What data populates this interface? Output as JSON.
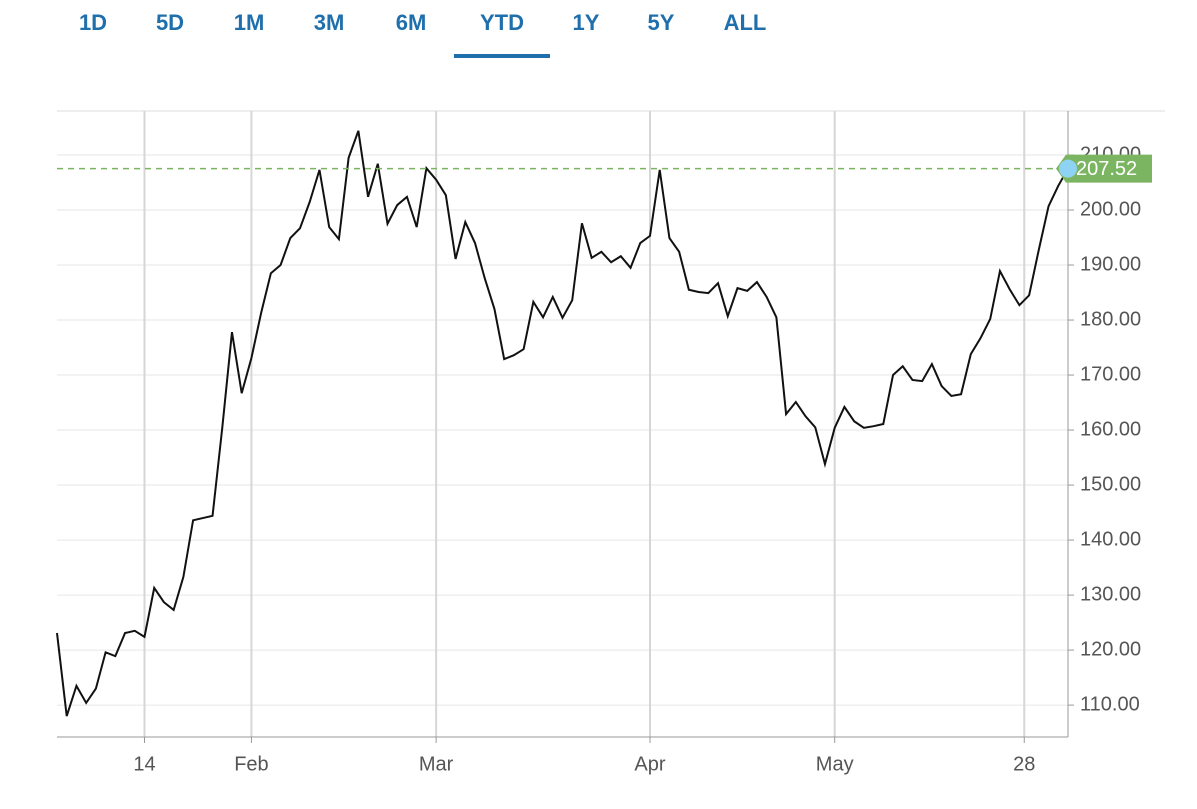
{
  "tabs": [
    "1D",
    "5D",
    "1M",
    "3M",
    "6M",
    "YTD",
    "1Y",
    "5Y",
    "ALL"
  ],
  "selected_tab": 5,
  "chart_data": {
    "type": "line",
    "color": "#111111",
    "grid": true,
    "y_axis_side": "right",
    "values": [
      123.1,
      108,
      113.5,
      110.4,
      113,
      119.6,
      118.9,
      123.1,
      123.5,
      122.4,
      131.3,
      128.7,
      127.3,
      133.3,
      143.6,
      144,
      144.4,
      160.4,
      177.8,
      166.7,
      173.1,
      181.3,
      188.5,
      190,
      194.9,
      196.7,
      201.5,
      207.3,
      196.9,
      194.7,
      209.5,
      214.4,
      202.4,
      208.4,
      197.5,
      200.9,
      202.4,
      196.9,
      207.6,
      205.5,
      202.7,
      191.1,
      197.8,
      194,
      187.6,
      182,
      172.9,
      173.6,
      174.7,
      183.3,
      180.5,
      184.2,
      180.4,
      183.6,
      197.6,
      191.3,
      192.4,
      190.5,
      191.6,
      189.5,
      194,
      195.3,
      207.3,
      194.9,
      192.4,
      185.5,
      185.1,
      184.9,
      186.7,
      180.7,
      185.8,
      185.3,
      186.9,
      184.2,
      180.5,
      162.9,
      165.1,
      162.5,
      160.5,
      153.8,
      160.4,
      164.2,
      161.6,
      160.4,
      160.7,
      161.1,
      170,
      171.6,
      169.1,
      168.9,
      172,
      168,
      166.2,
      166.5,
      173.8,
      176.7,
      180.2,
      188.9,
      185.6,
      182.7,
      184.5,
      192.8,
      200.7,
      204.4,
      207.52
    ],
    "xlim": [
      0,
      104
    ],
    "xticks": [
      {
        "value": 9,
        "label": "14"
      },
      {
        "value": 20,
        "label": "Feb"
      },
      {
        "value": 39,
        "label": "Mar"
      },
      {
        "value": 61,
        "label": "Apr"
      },
      {
        "value": 80,
        "label": "May"
      },
      {
        "value": 99.5,
        "label": "28"
      }
    ],
    "ylim": [
      104.2,
      218
    ],
    "yticks": [
      {
        "value": 110,
        "label": "110.00"
      },
      {
        "value": 120,
        "label": "120.00"
      },
      {
        "value": 130,
        "label": "130.00"
      },
      {
        "value": 140,
        "label": "140.00"
      },
      {
        "value": 150,
        "label": "150.00"
      },
      {
        "value": 160,
        "label": "160.00"
      },
      {
        "value": 170,
        "label": "170.00"
      },
      {
        "value": 180,
        "label": "180.00"
      },
      {
        "value": 190,
        "label": "190.00"
      },
      {
        "value": 200,
        "label": "200.00"
      },
      {
        "value": 210,
        "label": "210.00"
      }
    ],
    "last_price": 207.52,
    "last_color": "#7cb562",
    "marker_color": "#8fd3f4"
  }
}
